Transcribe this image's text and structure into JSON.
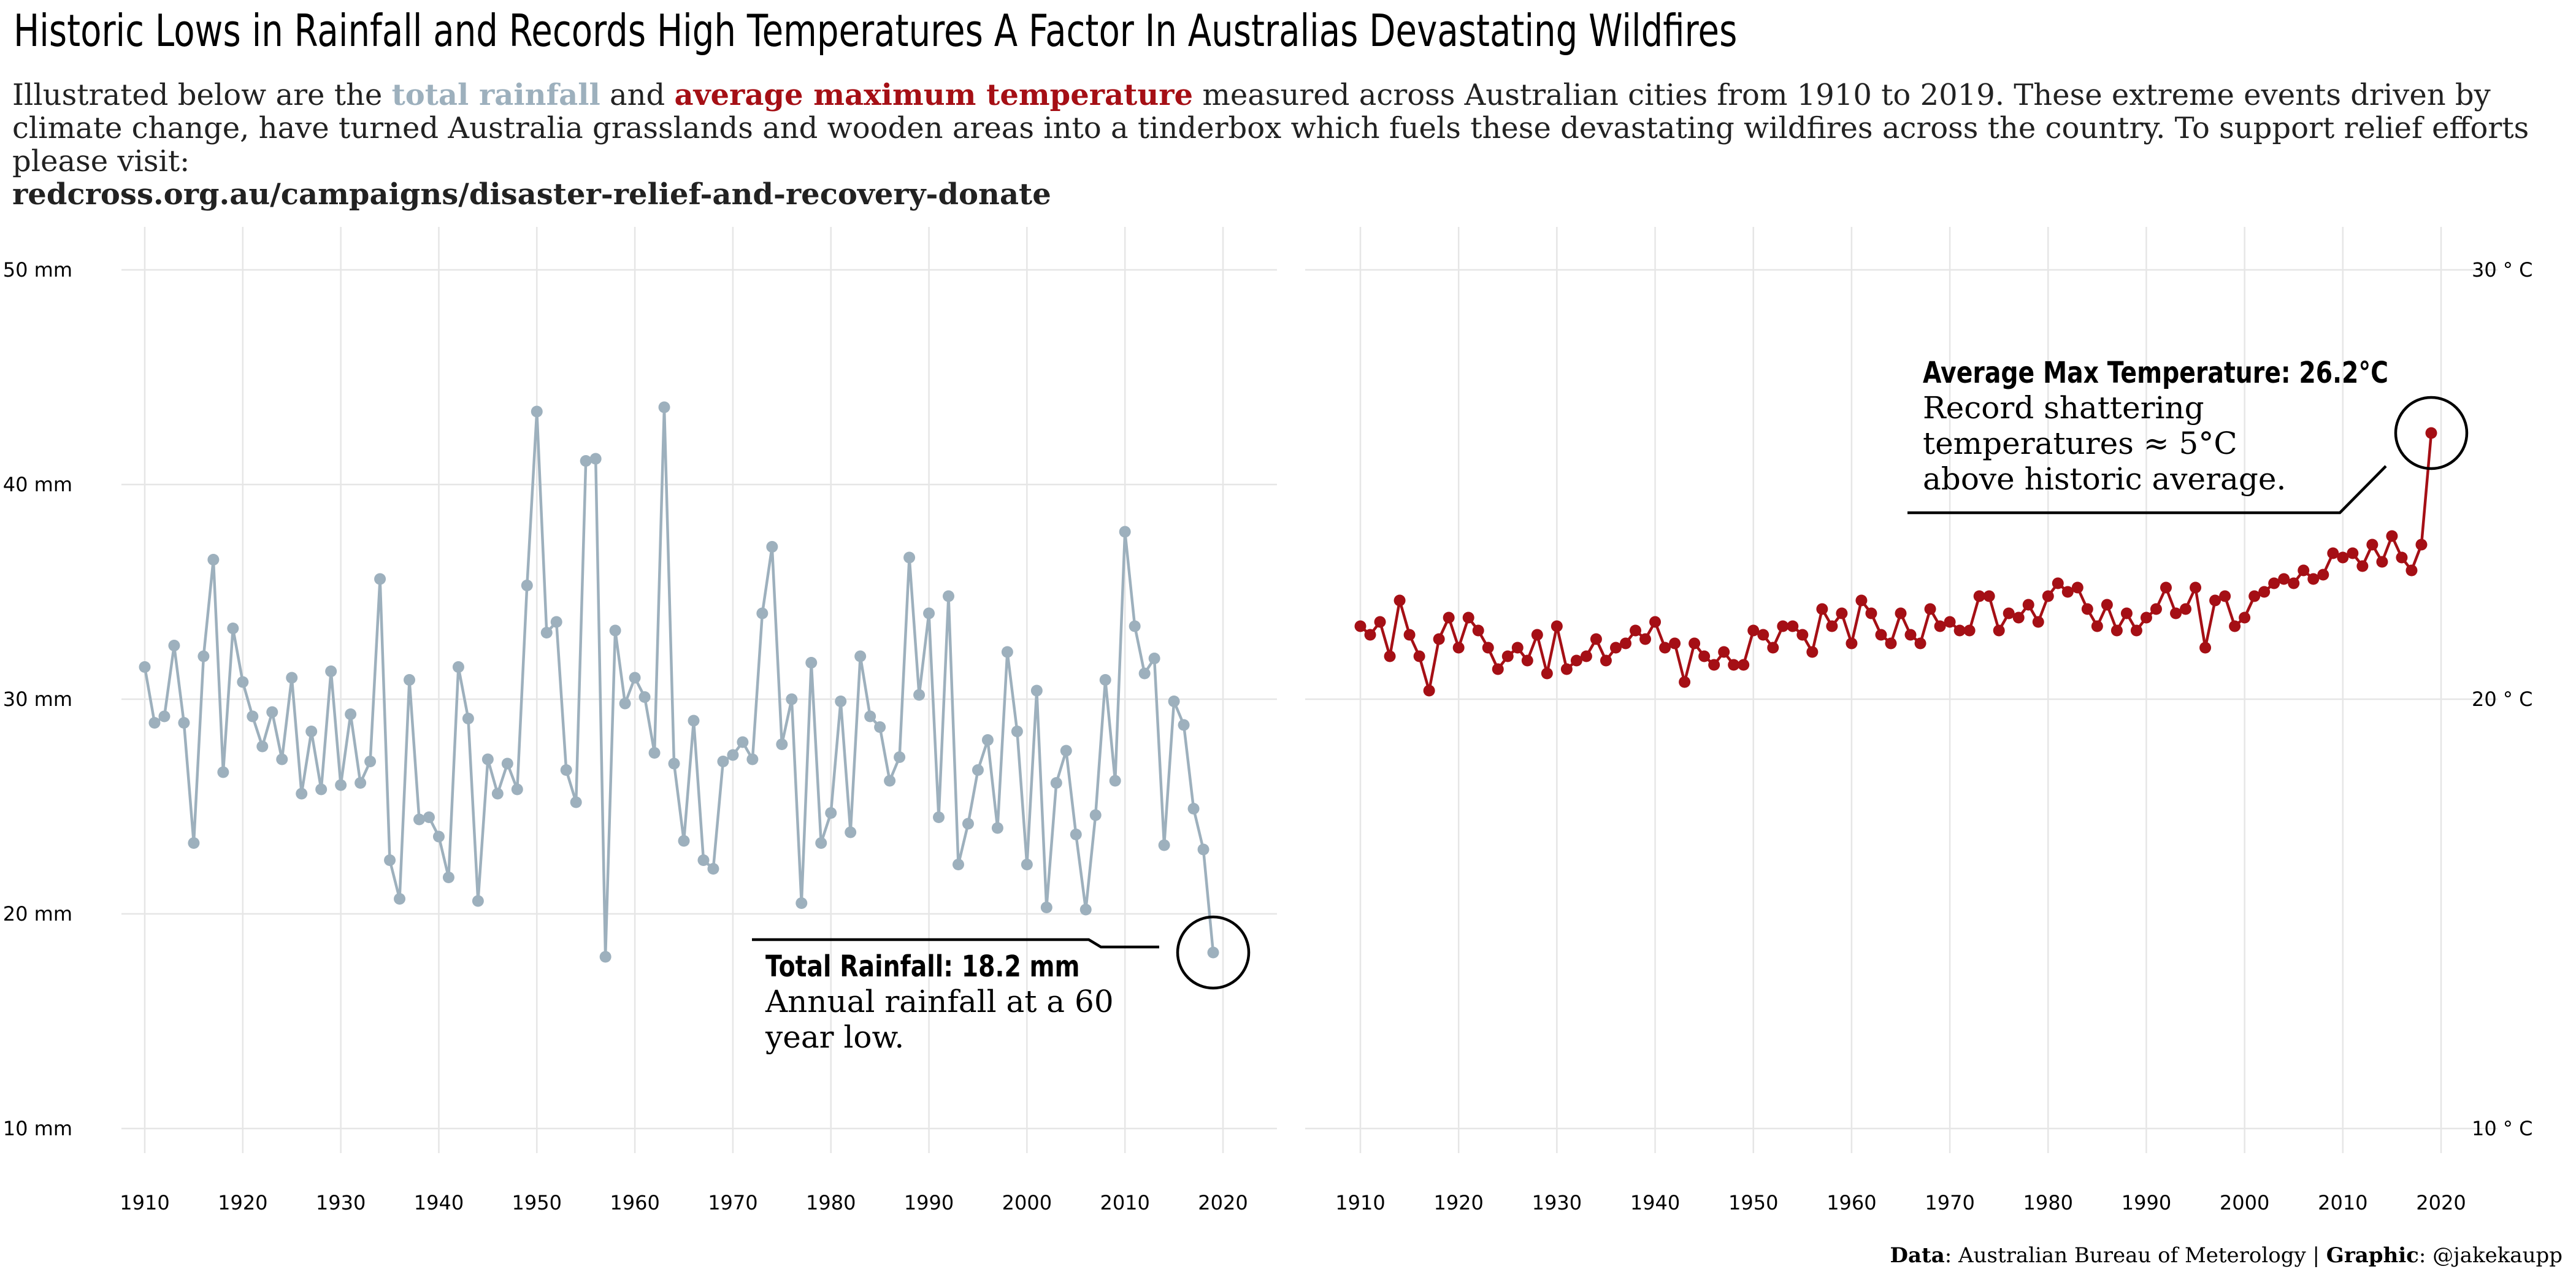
{
  "title": "Historic Lows in Rainfall and Records High Temperatures A Factor In Australias Devastating Wildfires",
  "subtitle": {
    "part1": "Illustrated below are the ",
    "rain_term": "total rainfall",
    "part2": " and ",
    "temp_term": "average maximum temperature",
    "part3": " measured across Australian cities from 1910 to 2019. These extreme events driven by climate change, have turned Australia grasslands and wooden areas into a tinderbox which fuels these devastating wildfires across the country. To support relief efforts please visit:",
    "link": "redcross.org.au/campaigns/disaster-relief-and-recovery-donate"
  },
  "caption": {
    "data_label": "Data",
    "data_source": ": Australian Bureau of Meterology | ",
    "graphic_label": "Graphic",
    "graphic_author": ": @jakekaupp"
  },
  "annotations": {
    "rain_head": "Total Rainfall: 18.2 mm",
    "rain_body": "Annual rainfall at a 60 year low.",
    "temp_head": "Average Max Temperature: 26.2°C",
    "temp_body": "Record shattering temperatures ≈ 5°C above historic average."
  },
  "colors": {
    "rain": "#9db0bd",
    "temp": "#a50f15",
    "grid": "#e6e6e6"
  },
  "chart_data": [
    {
      "type": "line",
      "series": [
        {
          "name": "total rainfall",
          "x_start": 1910,
          "values": [
            31.5,
            28.9,
            29.2,
            32.5,
            28.9,
            23.3,
            32.0,
            36.5,
            26.6,
            33.3,
            30.8,
            29.2,
            27.8,
            29.4,
            27.2,
            31.0,
            25.6,
            28.5,
            25.8,
            31.3,
            26.0,
            29.3,
            26.1,
            27.1,
            35.6,
            22.5,
            20.7,
            30.9,
            24.4,
            24.5,
            23.6,
            21.7,
            31.5,
            29.1,
            20.6,
            27.2,
            25.6,
            27.0,
            25.8,
            35.3,
            43.4,
            33.1,
            33.6,
            26.7,
            25.2,
            41.1,
            41.2,
            18.0,
            33.2,
            29.8,
            31.0,
            30.1,
            27.5,
            43.6,
            27.0,
            23.4,
            29.0,
            22.5,
            22.1,
            27.1,
            27.4,
            28.0,
            27.2,
            34.0,
            37.1,
            27.9,
            30.0,
            20.5,
            31.7,
            23.3,
            24.7,
            29.9,
            23.8,
            32.0,
            29.2,
            28.7,
            26.2,
            27.3,
            36.6,
            30.2,
            34.0,
            24.5,
            34.8,
            22.3,
            24.2,
            26.7,
            28.1,
            24.0,
            32.2,
            28.5,
            22.3,
            30.4,
            20.3,
            26.1,
            27.6,
            23.7,
            20.2,
            24.6,
            30.9,
            26.2,
            37.8,
            33.4,
            31.2,
            31.9,
            23.2,
            29.9,
            28.8,
            24.9,
            23.0,
            18.2
          ]
        }
      ],
      "x_ticks": [
        1910,
        1920,
        1930,
        1940,
        1950,
        1960,
        1970,
        1980,
        1990,
        2000,
        2010,
        2020
      ],
      "y_ticks": [
        "10 mm",
        "20 mm",
        "30 mm",
        "40 mm",
        "50 mm"
      ],
      "ylim": [
        10,
        50
      ]
    },
    {
      "type": "line",
      "series": [
        {
          "name": "average maximum temperature",
          "x_start": 1910,
          "values": [
            21.7,
            21.5,
            21.8,
            21.0,
            22.3,
            21.5,
            21.0,
            20.2,
            21.4,
            21.9,
            21.2,
            21.9,
            21.6,
            21.2,
            20.7,
            21.0,
            21.2,
            20.9,
            21.5,
            20.6,
            21.7,
            20.7,
            20.9,
            21.0,
            21.4,
            20.9,
            21.2,
            21.3,
            21.6,
            21.4,
            21.8,
            21.2,
            21.3,
            20.4,
            21.3,
            21.0,
            20.8,
            21.1,
            20.8,
            20.8,
            21.6,
            21.5,
            21.2,
            21.7,
            21.7,
            21.5,
            21.1,
            22.1,
            21.7,
            22.0,
            21.3,
            22.3,
            22.0,
            21.5,
            21.3,
            22.0,
            21.5,
            21.3,
            22.1,
            21.7,
            21.8,
            21.6,
            21.6,
            22.4,
            22.4,
            21.6,
            22.0,
            21.9,
            22.2,
            21.8,
            22.4,
            22.7,
            22.5,
            22.6,
            22.1,
            21.7,
            22.2,
            21.6,
            22.0,
            21.6,
            21.9,
            22.1,
            22.6,
            22.0,
            22.1,
            22.6,
            21.2,
            22.3,
            22.4,
            21.7,
            21.9,
            22.4,
            22.5,
            22.7,
            22.8,
            22.7,
            23.0,
            22.8,
            22.9,
            23.4,
            23.3,
            23.4,
            23.1,
            23.6,
            23.2,
            23.8,
            23.3,
            23.0,
            23.6,
            26.2
          ]
        }
      ],
      "x_ticks": [
        1910,
        1920,
        1930,
        1940,
        1950,
        1960,
        1970,
        1980,
        1990,
        2000,
        2010,
        2020
      ],
      "y_ticks": [
        "10 ° C",
        "20 ° C",
        "30 ° C"
      ],
      "ylim": [
        10,
        30
      ]
    }
  ]
}
